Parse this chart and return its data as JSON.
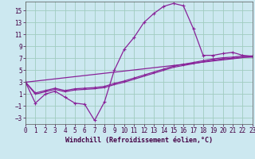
{
  "xlabel": "Windchill (Refroidissement éolien,°C)",
  "background_color": "#cce8f0",
  "grid_color": "#a0ccc0",
  "line_color": "#882299",
  "x_ticks": [
    0,
    1,
    2,
    3,
    4,
    5,
    6,
    7,
    8,
    9,
    10,
    11,
    12,
    13,
    14,
    15,
    16,
    17,
    18,
    19,
    20,
    21,
    22,
    23
  ],
  "y_ticks": [
    -3,
    -1,
    1,
    3,
    5,
    7,
    9,
    11,
    13,
    15
  ],
  "xlim": [
    0,
    23
  ],
  "ylim": [
    -4,
    16.5
  ],
  "series1_x": [
    0,
    1,
    2,
    3,
    4,
    5,
    6,
    7,
    8,
    9,
    10,
    11,
    12,
    13,
    14,
    15,
    16,
    17,
    18,
    19,
    20,
    21,
    22,
    23
  ],
  "series1_y": [
    3,
    -0.5,
    1,
    1.5,
    0.5,
    -0.5,
    -0.7,
    -3.4,
    -0.3,
    5,
    8.5,
    10.5,
    13,
    14.5,
    15.7,
    16.2,
    15.8,
    12,
    7.5,
    7.5,
    7.8,
    8,
    7.5,
    7.3
  ],
  "series2_x": [
    0,
    23
  ],
  "series2_y": [
    3,
    7.3
  ],
  "series3_x": [
    0,
    1,
    2,
    3,
    4,
    5,
    6,
    7,
    8,
    9,
    10,
    11,
    12,
    13,
    14,
    15,
    16,
    17,
    18,
    19,
    20,
    21,
    22,
    23
  ],
  "series3_y": [
    3,
    1.2,
    1.6,
    2.0,
    1.6,
    1.9,
    2.0,
    2.1,
    2.3,
    2.8,
    3.2,
    3.7,
    4.2,
    4.7,
    5.2,
    5.7,
    6.0,
    6.3,
    6.6,
    6.9,
    7.1,
    7.2,
    7.4,
    7.4
  ],
  "series4_x": [
    0,
    1,
    2,
    3,
    4,
    5,
    6,
    7,
    8,
    9,
    10,
    11,
    12,
    13,
    14,
    15,
    16,
    17,
    18,
    19,
    20,
    21,
    22,
    23
  ],
  "series4_y": [
    3,
    1.0,
    1.4,
    1.8,
    1.4,
    1.7,
    1.8,
    1.9,
    2.1,
    2.6,
    3.0,
    3.5,
    4.0,
    4.5,
    5.0,
    5.5,
    5.8,
    6.1,
    6.4,
    6.7,
    6.9,
    7.0,
    7.2,
    7.2
  ]
}
